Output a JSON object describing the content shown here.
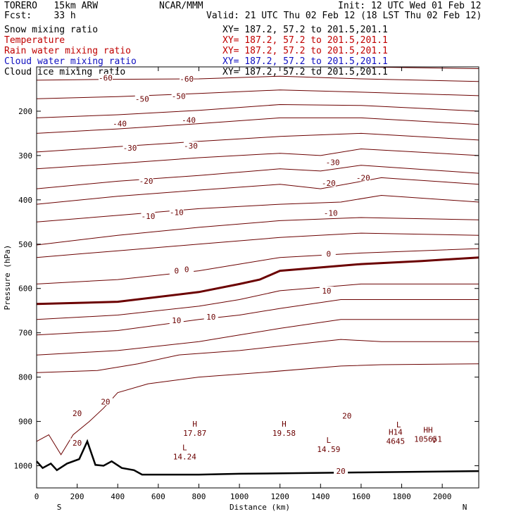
{
  "header": {
    "model": "TORERO   15km ARW",
    "org": "NCAR/MMM",
    "init": "Init: 12 UTC Wed 01 Feb 12",
    "fcst": "Fcst:    33 h",
    "valid": "Valid: 21 UTC Thu 02 Feb 12 (18 LST Thu 02 Feb 12)"
  },
  "legend": [
    {
      "label": "Snow mixing ratio",
      "xy": "XY= 187.2, 57.2 to 201.5,201.1",
      "color": "#000000"
    },
    {
      "label": "Temperature",
      "xy": "XY= 187.2, 57.2 to 201.5,201.1",
      "color": "#c00000"
    },
    {
      "label": "Rain water mixing ratio",
      "xy": "XY= 187.2, 57.2 to 201.5,201.1",
      "color": "#c00000"
    },
    {
      "label": "Cloud water mixing ratio",
      "xy": "XY= 187.2, 57.2 to 201.5,201.1",
      "color": "#1010c0"
    },
    {
      "label": "Cloud ice mixing ratio",
      "xy": "XY= 187.2, 57.2 to 201.5,201.1",
      "color": "#000000"
    }
  ],
  "chart_data": {
    "type": "line",
    "title": "",
    "xlabel": "Distance (km)",
    "ylabel": "Pressure (hPa)",
    "xlim": [
      0,
      2180
    ],
    "ylim": [
      1050,
      100
    ],
    "x_ticks": [
      0,
      200,
      400,
      600,
      800,
      1000,
      1200,
      1400,
      1600,
      1800,
      2000
    ],
    "y_ticks": [
      200,
      300,
      400,
      500,
      600,
      700,
      800,
      900,
      1000
    ],
    "end_labels": [
      "S",
      "N"
    ],
    "contour_color": "#6b0000",
    "zero_contour_color": "#6b0000",
    "terrain_color": "#000000",
    "isotherm_labels": [
      {
        "text": "-60",
        "x": 340,
        "p": 125
      },
      {
        "text": "-60",
        "x": 740,
        "p": 127
      },
      {
        "text": "-50",
        "x": 520,
        "p": 172
      },
      {
        "text": "-50",
        "x": 700,
        "p": 166
      },
      {
        "text": "-40",
        "x": 410,
        "p": 228
      },
      {
        "text": "-40",
        "x": 750,
        "p": 220
      },
      {
        "text": "-30",
        "x": 460,
        "p": 283
      },
      {
        "text": "-30",
        "x": 760,
        "p": 278
      },
      {
        "text": "-30",
        "x": 1460,
        "p": 315
      },
      {
        "text": "-20",
        "x": 540,
        "p": 357
      },
      {
        "text": "-20",
        "x": 1440,
        "p": 362
      },
      {
        "text": "-20",
        "x": 1610,
        "p": 350
      },
      {
        "text": "-10",
        "x": 550,
        "p": 437
      },
      {
        "text": "-10",
        "x": 690,
        "p": 428
      },
      {
        "text": "-10",
        "x": 1450,
        "p": 430
      },
      {
        "text": "0",
        "x": 690,
        "p": 560
      },
      {
        "text": "0",
        "x": 740,
        "p": 557
      },
      {
        "text": "0",
        "x": 1440,
        "p": 522
      },
      {
        "text": "10",
        "x": 690,
        "p": 672
      },
      {
        "text": "10",
        "x": 860,
        "p": 664
      },
      {
        "text": "10",
        "x": 1430,
        "p": 605
      },
      {
        "text": "20",
        "x": 340,
        "p": 855
      },
      {
        "text": "20",
        "x": 200,
        "p": 882
      },
      {
        "text": "20",
        "x": 1530,
        "p": 887
      }
    ],
    "isotherms_p": [
      {
        "v": -60,
        "points": [
          [
            0,
            95
          ],
          [
            400,
            98
          ],
          [
            800,
            100
          ],
          [
            1200,
            97
          ],
          [
            1600,
            100
          ],
          [
            2180,
            104
          ]
        ]
      },
      {
        "v": -60,
        "points": [
          [
            0,
            130
          ],
          [
            400,
            128
          ],
          [
            800,
            127
          ],
          [
            1200,
            121
          ],
          [
            1600,
            127
          ],
          [
            2180,
            133
          ]
        ]
      },
      {
        "v": -50,
        "points": [
          [
            0,
            172
          ],
          [
            400,
            167
          ],
          [
            800,
            160
          ],
          [
            1200,
            152
          ],
          [
            1600,
            157
          ],
          [
            2180,
            165
          ]
        ]
      },
      {
        "v": -50,
        "points": [
          [
            0,
            215
          ],
          [
            400,
            208
          ],
          [
            800,
            198
          ],
          [
            1200,
            185
          ],
          [
            1600,
            187
          ],
          [
            2180,
            200
          ]
        ]
      },
      {
        "v": -40,
        "points": [
          [
            0,
            250
          ],
          [
            400,
            240
          ],
          [
            800,
            228
          ],
          [
            1200,
            215
          ],
          [
            1600,
            215
          ],
          [
            2180,
            230
          ]
        ]
      },
      {
        "v": -30,
        "points": [
          [
            0,
            292
          ],
          [
            400,
            280
          ],
          [
            800,
            268
          ],
          [
            1200,
            257
          ],
          [
            1600,
            250
          ],
          [
            2180,
            265
          ]
        ]
      },
      {
        "v": -30,
        "points": [
          [
            0,
            330
          ],
          [
            400,
            318
          ],
          [
            800,
            305
          ],
          [
            1200,
            295
          ],
          [
            1400,
            300
          ],
          [
            1600,
            285
          ],
          [
            2180,
            300
          ]
        ]
      },
      {
        "v": -20,
        "points": [
          [
            0,
            375
          ],
          [
            400,
            358
          ],
          [
            800,
            345
          ],
          [
            1200,
            330
          ],
          [
            1400,
            335
          ],
          [
            1600,
            322
          ],
          [
            2180,
            340
          ]
        ]
      },
      {
        "v": -20,
        "points": [
          [
            0,
            410
          ],
          [
            400,
            392
          ],
          [
            800,
            378
          ],
          [
            1200,
            365
          ],
          [
            1400,
            375
          ],
          [
            1700,
            350
          ],
          [
            2180,
            365
          ]
        ]
      },
      {
        "v": -10,
        "points": [
          [
            0,
            450
          ],
          [
            400,
            435
          ],
          [
            800,
            420
          ],
          [
            1200,
            410
          ],
          [
            1500,
            405
          ],
          [
            1700,
            390
          ],
          [
            2180,
            405
          ]
        ]
      },
      {
        "v": -10,
        "points": [
          [
            0,
            502
          ],
          [
            400,
            480
          ],
          [
            800,
            462
          ],
          [
            1200,
            447
          ],
          [
            1600,
            440
          ],
          [
            2180,
            445
          ]
        ]
      },
      {
        "v": 0,
        "points": [
          [
            0,
            530
          ],
          [
            400,
            515
          ],
          [
            800,
            500
          ],
          [
            1200,
            485
          ],
          [
            1600,
            475
          ],
          [
            2180,
            480
          ]
        ]
      },
      {
        "v": 0,
        "points": [
          [
            0,
            590
          ],
          [
            400,
            580
          ],
          [
            800,
            560
          ],
          [
            1000,
            545
          ],
          [
            1200,
            530
          ],
          [
            1600,
            520
          ],
          [
            2180,
            510
          ]
        ]
      },
      {
        "v": 0,
        "points": [
          [
            0,
            635
          ],
          [
            400,
            630
          ],
          [
            800,
            608
          ],
          [
            1000,
            590
          ],
          [
            1100,
            580
          ],
          [
            1200,
            560
          ],
          [
            1600,
            545
          ],
          [
            1900,
            538
          ],
          [
            2180,
            530
          ]
        ]
      },
      {
        "v": 10,
        "points": [
          [
            0,
            670
          ],
          [
            400,
            660
          ],
          [
            800,
            640
          ],
          [
            1000,
            625
          ],
          [
            1200,
            605
          ],
          [
            1600,
            590
          ],
          [
            2180,
            590
          ]
        ]
      },
      {
        "v": 10,
        "points": [
          [
            0,
            705
          ],
          [
            400,
            695
          ],
          [
            800,
            670
          ],
          [
            1000,
            660
          ],
          [
            1200,
            645
          ],
          [
            1500,
            625
          ],
          [
            1700,
            625
          ],
          [
            2180,
            625
          ]
        ]
      },
      {
        "v": 10,
        "points": [
          [
            0,
            750
          ],
          [
            400,
            740
          ],
          [
            800,
            720
          ],
          [
            1000,
            705
          ],
          [
            1200,
            690
          ],
          [
            1500,
            670
          ],
          [
            1700,
            670
          ],
          [
            2180,
            670
          ]
        ]
      },
      {
        "v": 20,
        "points": [
          [
            0,
            790
          ],
          [
            300,
            785
          ],
          [
            500,
            770
          ],
          [
            700,
            750
          ],
          [
            1000,
            740
          ],
          [
            1300,
            725
          ],
          [
            1500,
            715
          ],
          [
            1700,
            720
          ],
          [
            2180,
            720
          ]
        ]
      },
      {
        "v": 20,
        "points": [
          [
            0,
            945
          ],
          [
            60,
            930
          ],
          [
            120,
            975
          ],
          [
            180,
            930
          ],
          [
            260,
            900
          ],
          [
            330,
            870
          ],
          [
            400,
            835
          ],
          [
            550,
            815
          ],
          [
            800,
            800
          ],
          [
            1100,
            790
          ],
          [
            1500,
            775
          ],
          [
            1700,
            772
          ],
          [
            2180,
            770
          ]
        ]
      }
    ],
    "terrain_p": [
      [
        0,
        990
      ],
      [
        30,
        1005
      ],
      [
        70,
        995
      ],
      [
        100,
        1010
      ],
      [
        150,
        995
      ],
      [
        210,
        985
      ],
      [
        250,
        945
      ],
      [
        290,
        998
      ],
      [
        330,
        1000
      ],
      [
        370,
        990
      ],
      [
        420,
        1005
      ],
      [
        480,
        1010
      ],
      [
        520,
        1020
      ],
      [
        800,
        1020
      ],
      [
        1000,
        1018
      ],
      [
        1600,
        1015
      ],
      [
        2180,
        1012
      ]
    ],
    "extrema": [
      {
        "type": "H",
        "value": "17.87",
        "x": 780,
        "p": 912
      },
      {
        "type": "L",
        "value": "14.24",
        "x": 730,
        "p": 965
      },
      {
        "type": "H",
        "value": "19.58",
        "x": 1220,
        "p": 912
      },
      {
        "type": "L",
        "value": "14.59",
        "x": 1440,
        "p": 948
      },
      {
        "type": "L",
        "value": "",
        "x": 1785,
        "p": 913
      },
      {
        "type": "H14",
        "value": "4645",
        "x": 1770,
        "p": 930
      },
      {
        "type": "HH",
        "value": "105651",
        "x": 1930,
        "p": 925
      }
    ],
    "misc_marks": [
      {
        "text": "20",
        "x": 200,
        "p": 948
      },
      {
        "text": "20",
        "x": 1500,
        "p": 1012
      },
      {
        "text": "V",
        "x": 1960,
        "p": 942
      }
    ]
  }
}
